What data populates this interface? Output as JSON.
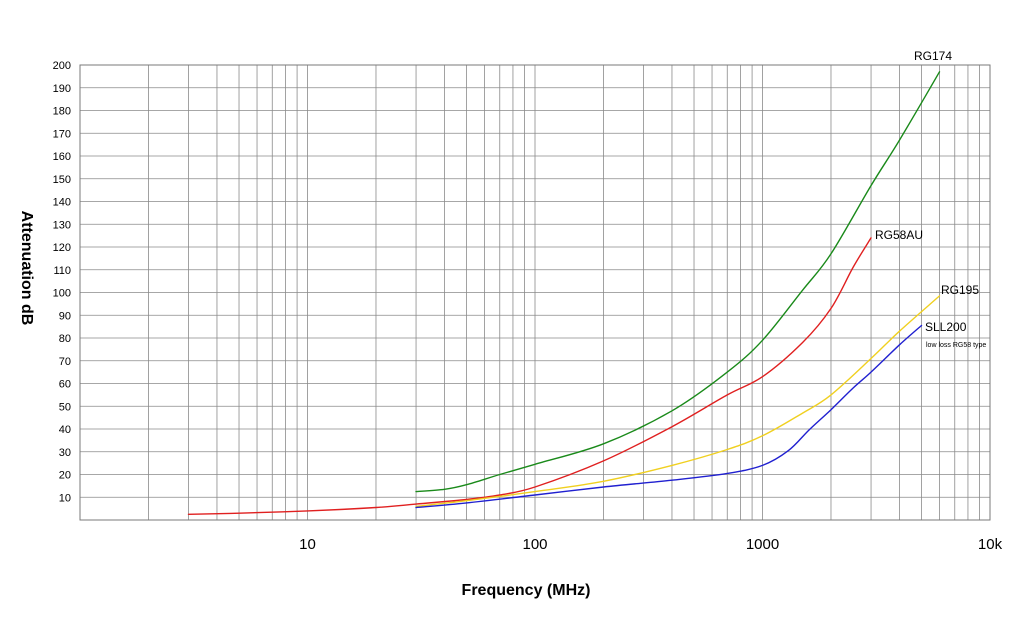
{
  "chart_data": {
    "type": "line",
    "title": "",
    "xlabel": "Frequency (MHz)",
    "ylabel": "Attenuation dB",
    "x_scale": "log",
    "xlim": [
      1,
      10000
    ],
    "ylim": [
      0,
      200
    ],
    "x_tick_labels": [
      {
        "value": 10,
        "label": "10"
      },
      {
        "value": 100,
        "label": "100"
      },
      {
        "value": 1000,
        "label": "1000"
      },
      {
        "value": 10000,
        "label": "10k"
      }
    ],
    "y_ticks": [
      10,
      20,
      30,
      40,
      50,
      60,
      70,
      80,
      90,
      100,
      110,
      120,
      130,
      140,
      150,
      160,
      170,
      180,
      190,
      200
    ],
    "grid": true,
    "legend": "none (series labelled at line ends)",
    "series": [
      {
        "name": "RG174",
        "color": "#1a8a1a",
        "x": [
          30,
          40,
          50,
          70,
          100,
          200,
          400,
          700,
          1000,
          1500,
          2000,
          3000,
          4000,
          6000
        ],
        "y": [
          12.5,
          13.5,
          15.5,
          20,
          24.5,
          33.5,
          48,
          65,
          79,
          101,
          117,
          147,
          167,
          197
        ]
      },
      {
        "name": "RG58AU",
        "color": "#e02020",
        "note": "",
        "x": [
          3,
          5,
          10,
          20,
          30,
          50,
          70,
          100,
          200,
          400,
          700,
          1000,
          1500,
          2000,
          2500,
          3000
        ],
        "y": [
          2.5,
          3,
          4,
          5.5,
          7,
          9,
          11,
          14.5,
          26,
          41,
          55,
          63,
          78,
          93,
          111,
          124
        ]
      },
      {
        "name": "RG195",
        "color": "#f0d020",
        "note": "",
        "x": [
          30,
          50,
          100,
          200,
          400,
          700,
          1000,
          1500,
          2000,
          3000,
          4000,
          6000
        ],
        "y": [
          6,
          8.5,
          12.5,
          17,
          24,
          31,
          37,
          47,
          55,
          71,
          83,
          98.5
        ]
      },
      {
        "name": "SLL200",
        "note": "low loss RG58 type",
        "color": "#2020d0",
        "x": [
          30,
          50,
          100,
          200,
          400,
          700,
          1000,
          1300,
          1600,
          2000,
          2500,
          3000,
          4000,
          5000
        ],
        "y": [
          5.5,
          7.5,
          11,
          14.5,
          17.5,
          20.5,
          24,
          30.5,
          39.5,
          48.5,
          58,
          65,
          77,
          85.5
        ]
      }
    ]
  }
}
